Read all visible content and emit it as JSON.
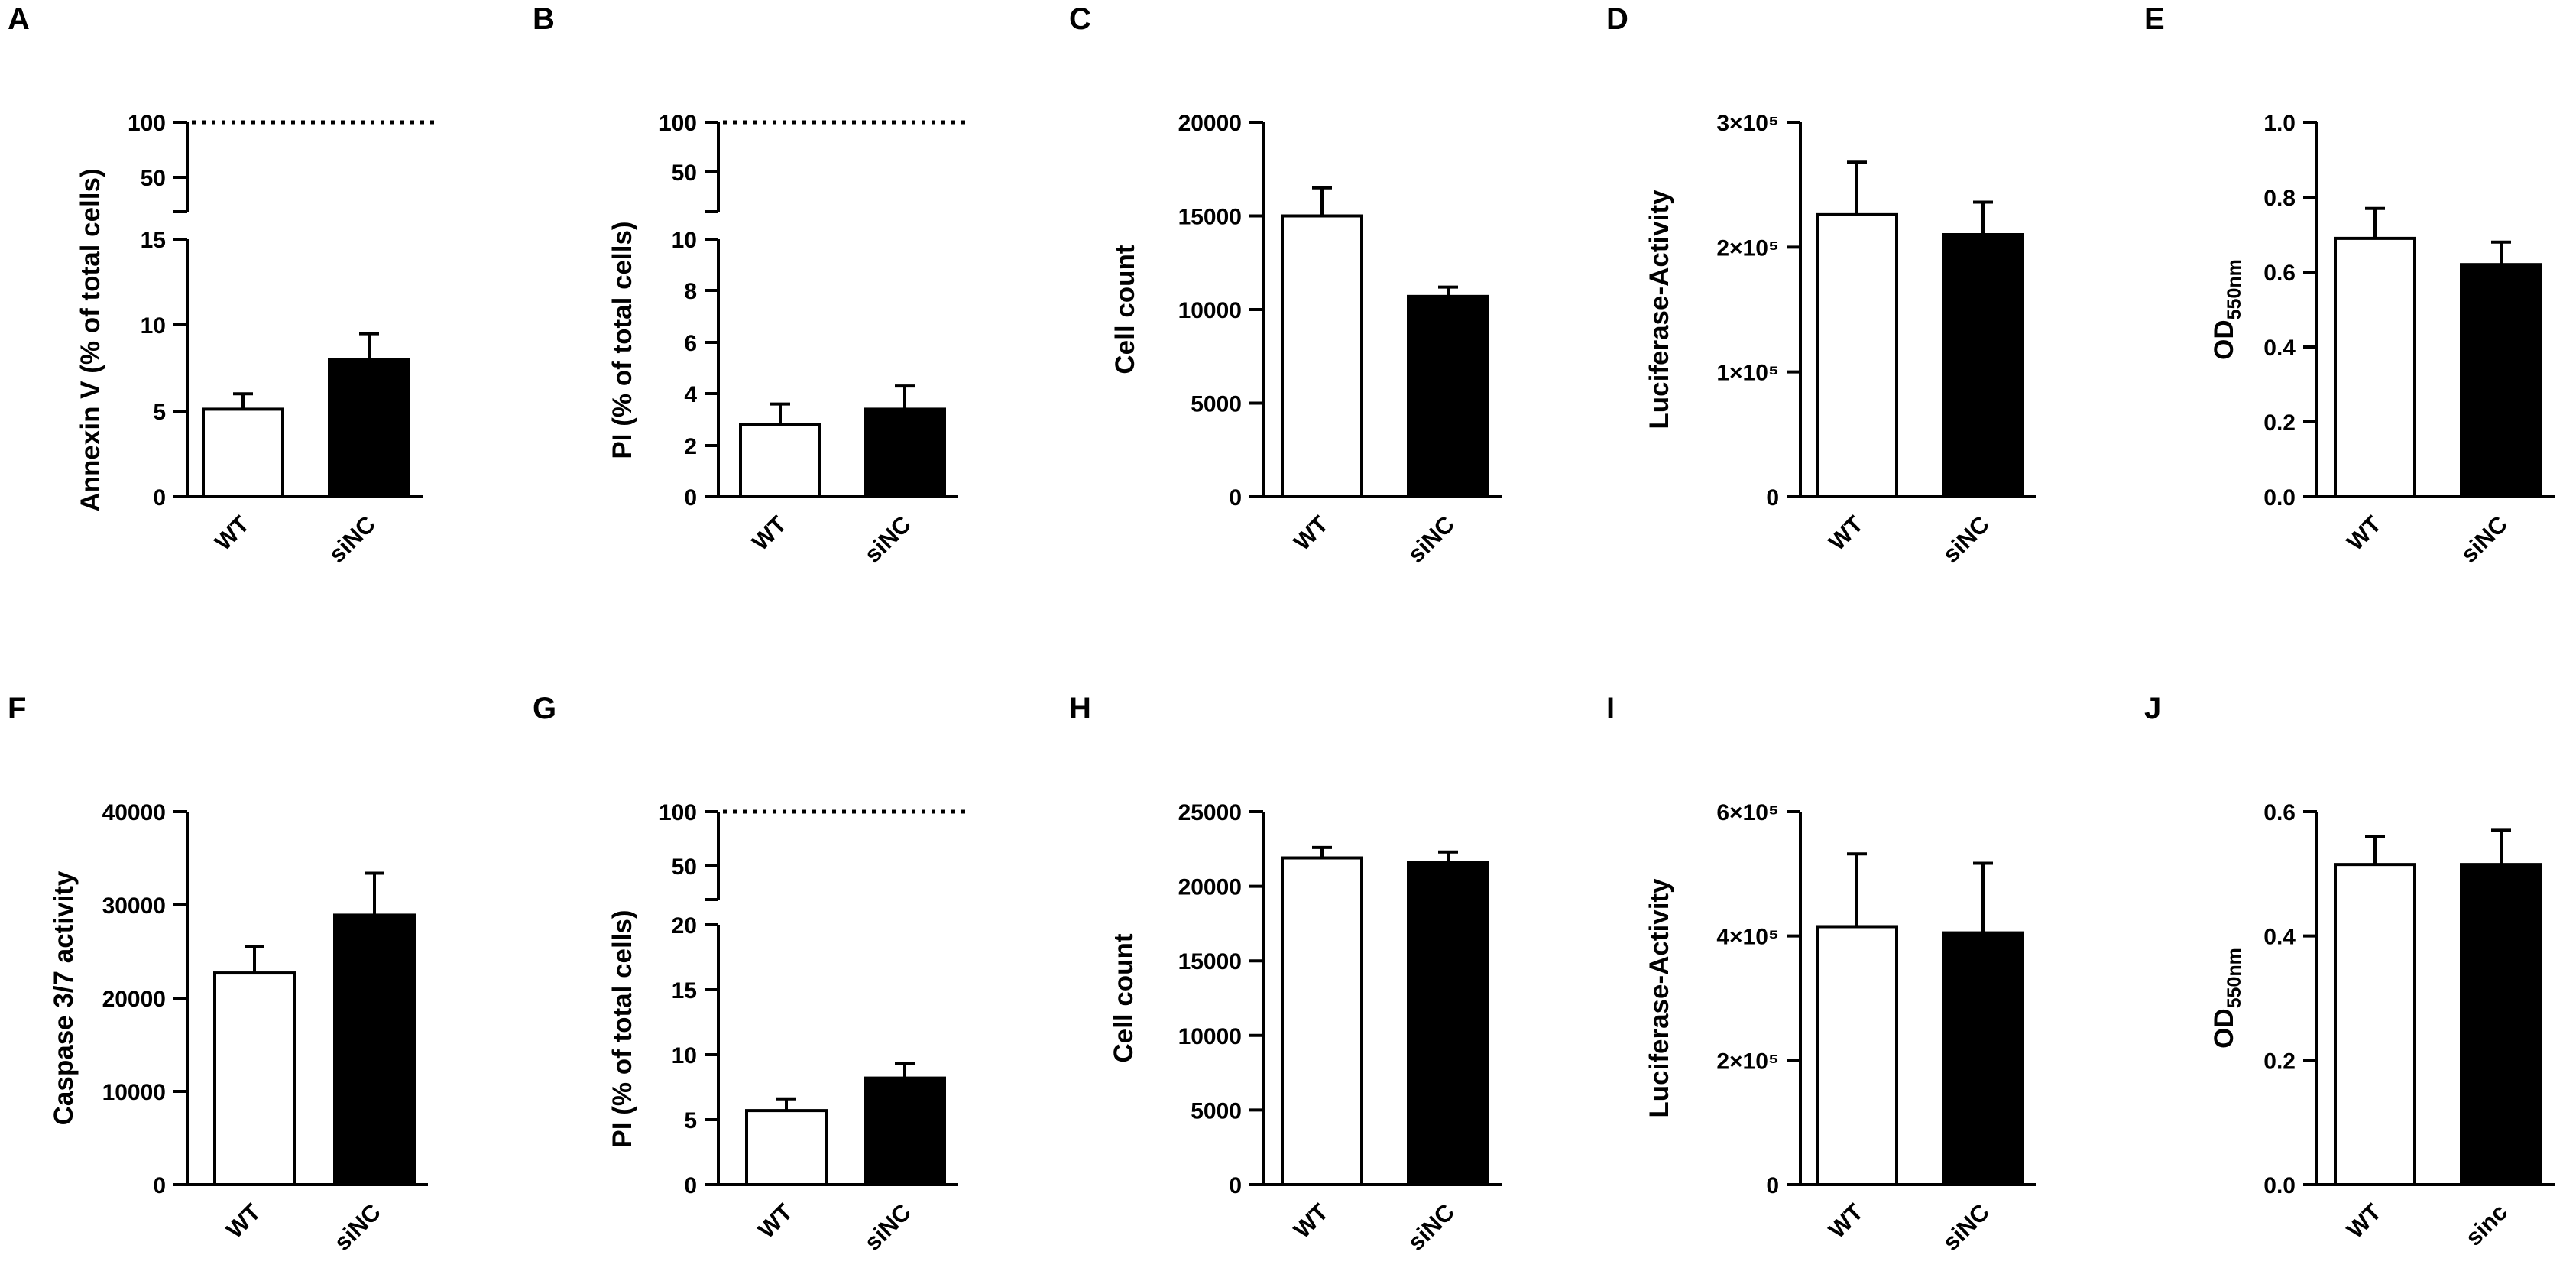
{
  "chart_data": [
    {
      "panel": "A",
      "type": "bar",
      "categories": [
        "WT",
        "siNC"
      ],
      "values": [
        5.1,
        8.0
      ],
      "errors": [
        0.9,
        1.5
      ],
      "ylabel": "Annexin V (% of total cells)",
      "ylim": [
        0,
        100
      ],
      "broken_axis": {
        "lower": [
          0,
          15
        ],
        "upper": [
          25,
          100
        ]
      },
      "yticks": [
        "0",
        "5",
        "10",
        "15",
        "50",
        "100"
      ],
      "reference_line": 100
    },
    {
      "panel": "B",
      "type": "bar",
      "categories": [
        "WT",
        "siNC"
      ],
      "values": [
        2.8,
        3.4
      ],
      "errors": [
        0.8,
        0.9
      ],
      "ylabel": "PI (% of total cells)",
      "ylim": [
        0,
        100
      ],
      "broken_axis": {
        "lower": [
          0,
          10
        ],
        "upper": [
          25,
          100
        ]
      },
      "yticks": [
        "0",
        "2",
        "4",
        "6",
        "8",
        "10",
        "50",
        "100"
      ],
      "reference_line": 100
    },
    {
      "panel": "C",
      "type": "bar",
      "categories": [
        "WT",
        "siNC"
      ],
      "values": [
        15000,
        10700
      ],
      "errors": [
        1500,
        500
      ],
      "ylabel": "Cell count",
      "ylim": [
        0,
        20000
      ],
      "yticks": [
        "0",
        "5000",
        "10000",
        "15000",
        "20000"
      ]
    },
    {
      "panel": "D",
      "type": "bar",
      "categories": [
        "WT",
        "siNC"
      ],
      "values": [
        226000,
        210000
      ],
      "errors": [
        42000,
        26000
      ],
      "ylabel": "Luciferase-Activity",
      "ylim": [
        0,
        300000
      ],
      "yticks": [
        "0",
        "1×10⁵",
        "2×10⁵",
        "3×10⁵"
      ]
    },
    {
      "panel": "E",
      "type": "bar",
      "categories": [
        "WT",
        "siNC"
      ],
      "values": [
        0.69,
        0.62
      ],
      "errors": [
        0.08,
        0.06
      ],
      "ylabel": "OD",
      "ylabel_sub": "550nm",
      "ylim": [
        0,
        1.0
      ],
      "yticks": [
        "0.0",
        "0.2",
        "0.4",
        "0.6",
        "0.8",
        "1.0"
      ]
    },
    {
      "panel": "F",
      "type": "bar",
      "categories": [
        "WT",
        "siNC"
      ],
      "values": [
        22700,
        28900
      ],
      "errors": [
        2800,
        4500
      ],
      "ylabel": "Caspase 3/7 activity",
      "ylim": [
        0,
        40000
      ],
      "yticks": [
        "0",
        "10000",
        "20000",
        "30000",
        "40000"
      ]
    },
    {
      "panel": "G",
      "type": "bar",
      "categories": [
        "WT",
        "siNC"
      ],
      "values": [
        5.7,
        8.2
      ],
      "errors": [
        0.9,
        1.1
      ],
      "ylabel": "PI (% of total cells)",
      "ylim": [
        0,
        100
      ],
      "broken_axis": {
        "lower": [
          0,
          20
        ],
        "upper": [
          25,
          100
        ]
      },
      "yticks": [
        "0",
        "5",
        "10",
        "15",
        "20",
        "50",
        "100"
      ],
      "reference_line": 100
    },
    {
      "panel": "H",
      "type": "bar",
      "categories": [
        "WT",
        "siNC"
      ],
      "values": [
        21900,
        21600
      ],
      "errors": [
        700,
        700
      ],
      "ylabel": "Cell count",
      "ylim": [
        0,
        25000
      ],
      "yticks": [
        "0",
        "5000",
        "10000",
        "15000",
        "20000",
        "25000"
      ]
    },
    {
      "panel": "I",
      "type": "bar",
      "categories": [
        "WT",
        "siNC"
      ],
      "values": [
        415000,
        405000
      ],
      "errors": [
        117000,
        112000
      ],
      "ylabel": "Luciferase-Activity",
      "ylim": [
        0,
        600000
      ],
      "yticks": [
        "0",
        "2×10⁵",
        "4×10⁵",
        "6×10⁵"
      ]
    },
    {
      "panel": "J",
      "type": "bar",
      "categories": [
        "WT",
        "sinc"
      ],
      "values": [
        0.515,
        0.515
      ],
      "errors": [
        0.045,
        0.055
      ],
      "ylabel": "OD",
      "ylabel_sub": "550nm",
      "ylim": [
        0,
        0.6
      ],
      "yticks": [
        "0.0",
        "0.2",
        "0.4",
        "0.6"
      ]
    }
  ]
}
